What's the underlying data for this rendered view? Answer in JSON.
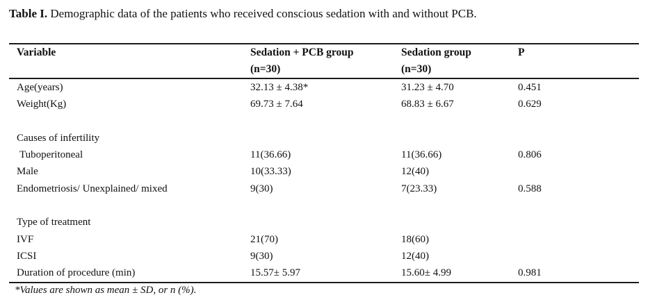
{
  "caption": {
    "label": "Table I.",
    "text": " Demographic data of the patients who received conscious sedation with and without PCB."
  },
  "table": {
    "header": {
      "variable": "Variable",
      "pcb_group_line1": "Sedation + PCB group",
      "pcb_group_line2": "(n=30)",
      "sedation_group_line1": "Sedation group",
      "sedation_group_line2": "(n=30)",
      "p": "P"
    },
    "rows": [
      {
        "variable": "Age(years)",
        "pcb": "32.13 ± 4.38*",
        "sed": "31.23 ± 4.70",
        "p": "0.451"
      },
      {
        "variable": "Weight(Kg)",
        "pcb": "69.73 ± 7.64",
        "sed": "68.83 ± 6.67",
        "p": "0.629"
      },
      {
        "variable": "",
        "pcb": "",
        "sed": "",
        "p": ""
      },
      {
        "variable": "Causes of infertility",
        "pcb": "",
        "sed": "",
        "p": ""
      },
      {
        "variable": "Tuboperitoneal",
        "pcb": "11(36.66)",
        "sed": "11(36.66)",
        "p": "0.806"
      },
      {
        "variable": "Male",
        "pcb": "10(33.33)",
        "sed": "12(40)",
        "p": ""
      },
      {
        "variable": "Endometriosis/ Unexplained/ mixed",
        "pcb": "9(30)",
        "sed": "7(23.33)",
        "p": "0.588"
      },
      {
        "variable": "",
        "pcb": "",
        "sed": "",
        "p": ""
      },
      {
        "variable": "Type of treatment",
        "pcb": "",
        "sed": "",
        "p": ""
      },
      {
        "variable": "IVF",
        "pcb": "21(70)",
        "sed": "18(60)",
        "p": ""
      },
      {
        "variable": "ICSI",
        "pcb": "9(30)",
        "sed": "12(40)",
        "p": ""
      },
      {
        "variable": "Duration of procedure (min)",
        "pcb": "15.57± 5.97",
        "sed": "15.60± 4.99",
        "p": "0.981"
      }
    ]
  },
  "footnote": "*Values are shown as mean ± SD, or n (%)."
}
